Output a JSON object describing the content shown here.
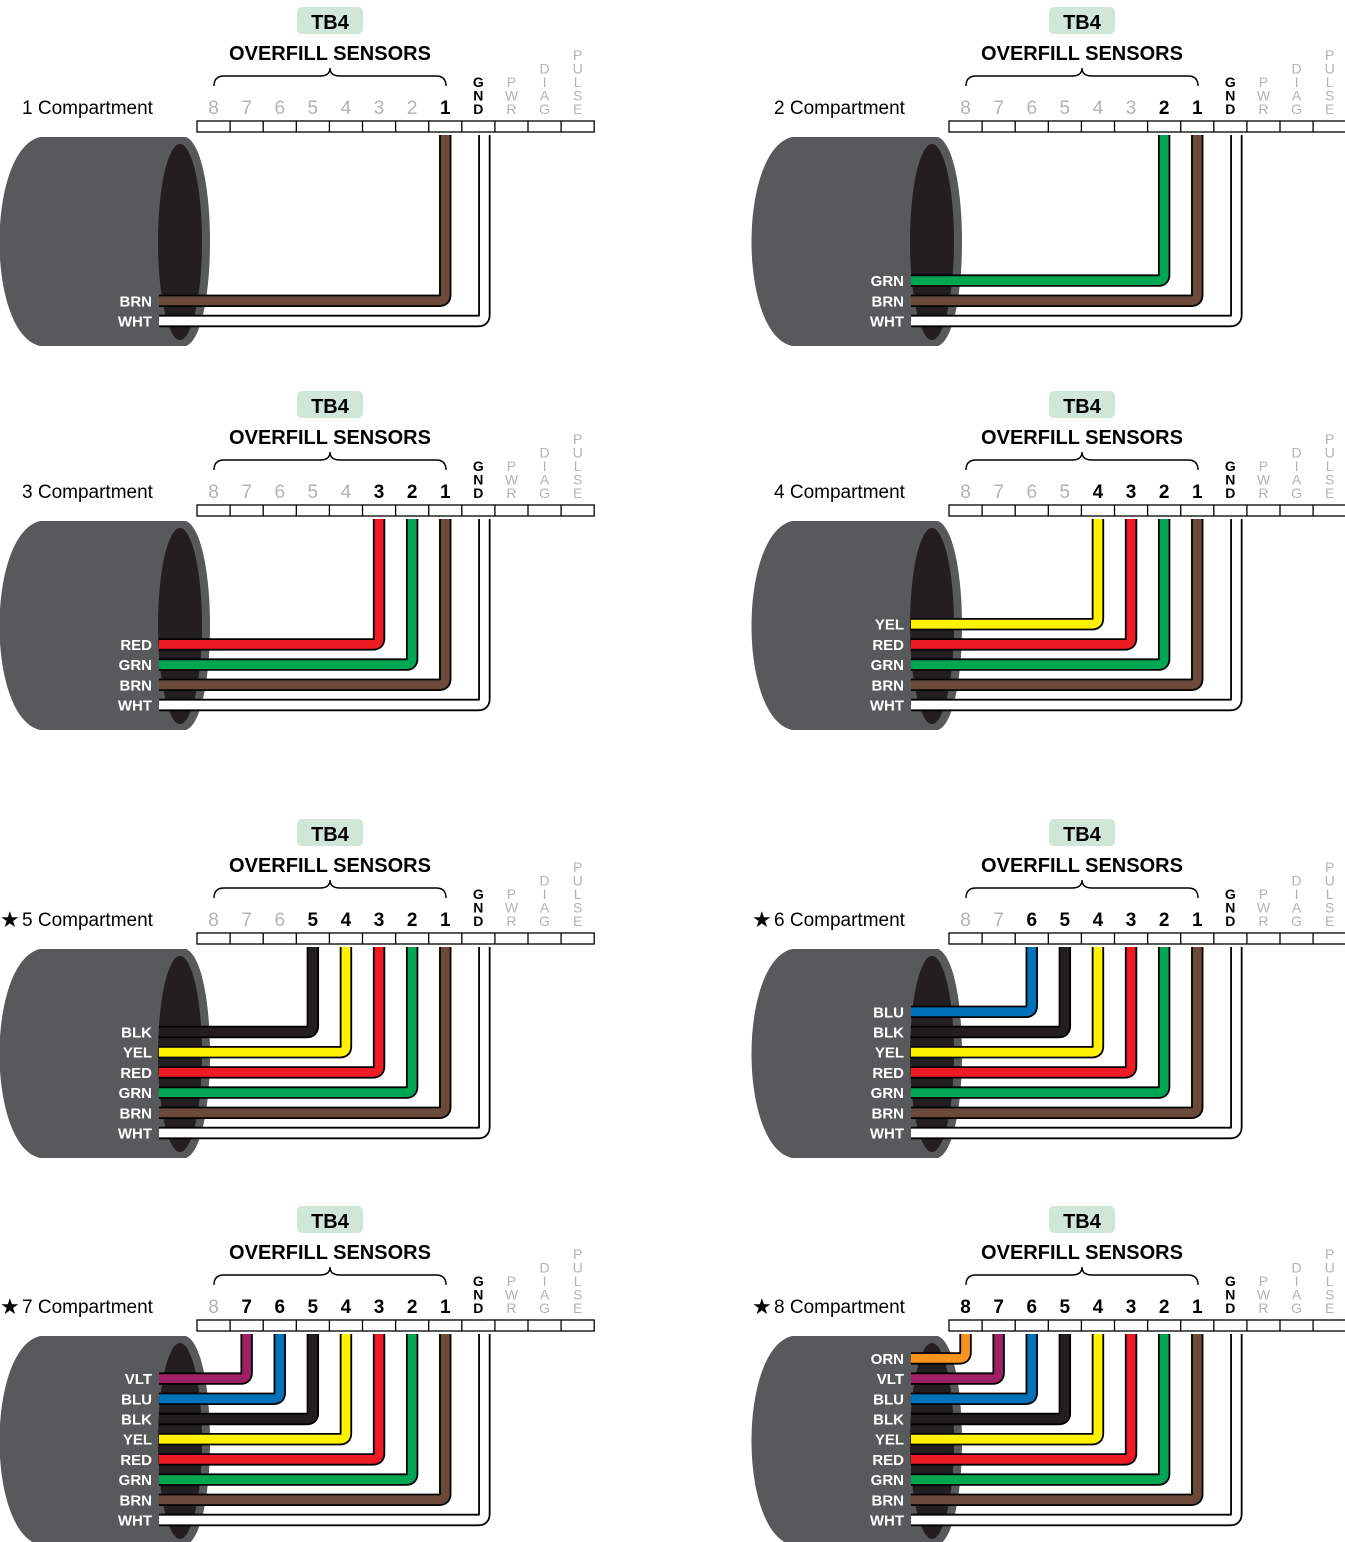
{
  "terminal_block": "TB4",
  "group_label": "OVERFILL SENSORS",
  "sensor_terminals": [
    "8",
    "7",
    "6",
    "5",
    "4",
    "3",
    "2",
    "1"
  ],
  "aux_terminals": [
    {
      "key": "gnd",
      "letters": [
        "G",
        "N",
        "D"
      ]
    },
    {
      "key": "pwr",
      "letters": [
        "P",
        "W",
        "R"
      ]
    },
    {
      "key": "diag",
      "letters": [
        "D",
        "I",
        "A",
        "G"
      ]
    },
    {
      "key": "pulse",
      "letters": [
        "P",
        "U",
        "L",
        "S",
        "E"
      ]
    }
  ],
  "asterisk": "★",
  "colors": {
    "BRN": "#6b4a3a",
    "GRN": "#00a651",
    "RED": "#ed1c24",
    "YEL": "#fff200",
    "BLK": "#231f20",
    "BLU": "#0072bc",
    "VLT": "#9e1f63",
    "ORN": "#f7941d",
    "WHT": "#ffffff",
    "cable_body": "#58595b",
    "cable_end": "#231f20",
    "tb_badge": "#cfe6d8",
    "inactive": "#b3b3b3"
  },
  "panels": [
    {
      "title": "1 Compartment",
      "starred": false,
      "count": 1,
      "wires": [
        "BRN",
        "WHT"
      ]
    },
    {
      "title": "2 Compartment",
      "starred": false,
      "count": 2,
      "wires": [
        "GRN",
        "BRN",
        "WHT"
      ]
    },
    {
      "title": "3 Compartment",
      "starred": false,
      "count": 3,
      "wires": [
        "RED",
        "GRN",
        "BRN",
        "WHT"
      ]
    },
    {
      "title": "4 Compartment",
      "starred": false,
      "count": 4,
      "wires": [
        "YEL",
        "RED",
        "GRN",
        "BRN",
        "WHT"
      ]
    },
    {
      "title": "5 Compartment",
      "starred": true,
      "count": 5,
      "wires": [
        "BLK",
        "YEL",
        "RED",
        "GRN",
        "BRN",
        "WHT"
      ]
    },
    {
      "title": "6 Compartment",
      "starred": true,
      "count": 6,
      "wires": [
        "BLU",
        "BLK",
        "YEL",
        "RED",
        "GRN",
        "BRN",
        "WHT"
      ]
    },
    {
      "title": "7 Compartment",
      "starred": true,
      "count": 7,
      "wires": [
        "VLT",
        "BLU",
        "BLK",
        "YEL",
        "RED",
        "GRN",
        "BRN",
        "WHT"
      ]
    },
    {
      "title": "8 Compartment",
      "starred": true,
      "count": 8,
      "wires": [
        "ORN",
        "VLT",
        "BLU",
        "BLK",
        "YEL",
        "RED",
        "GRN",
        "BRN",
        "WHT"
      ]
    }
  ]
}
